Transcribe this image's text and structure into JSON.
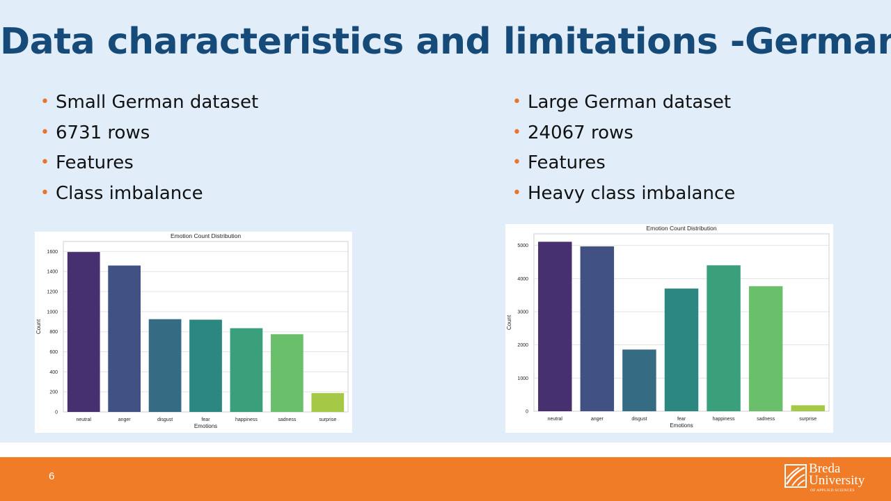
{
  "slide": {
    "title": "Data characteristics and limitations -German",
    "page_number": "6"
  },
  "left_bullets": [
    "Small German dataset",
    "6731 rows",
    "Features",
    "Class imbalance"
  ],
  "right_bullets": [
    "Large German dataset",
    "24067 rows",
    "Features",
    "Heavy class imbalance"
  ],
  "colors": {
    "accent_orange": "#f07c28",
    "title_blue": "#164a78",
    "background": "#e1eef9",
    "bar_palette": [
      "#47306f",
      "#415183",
      "#356b83",
      "#2b8780",
      "#3aa07b",
      "#6abf6b",
      "#a5c946"
    ]
  },
  "logo": {
    "icon": "breda-university-logo-icon",
    "line1": "Breda",
    "line2": "University",
    "line3": "OF APPLIED SCIENCES"
  },
  "chart_data": [
    {
      "type": "bar",
      "title": "Emotion Count Distribution",
      "xlabel": "Emotions",
      "ylabel": "Count",
      "categories": [
        "neutral",
        "anger",
        "disgust",
        "fear",
        "happiness",
        "sadness",
        "surprise"
      ],
      "values": [
        1595,
        1460,
        925,
        920,
        835,
        775,
        188
      ],
      "ylim": [
        0,
        1700
      ],
      "yticks": [
        0,
        200,
        400,
        600,
        800,
        1000,
        1200,
        1400,
        1600
      ],
      "grid": true
    },
    {
      "type": "bar",
      "title": "Emotion Count Distribution",
      "xlabel": "Emotions",
      "ylabel": "Count",
      "categories": [
        "neutral",
        "anger",
        "disgust",
        "fear",
        "happiness",
        "sadness",
        "surprise"
      ],
      "values": [
        5110,
        4970,
        1860,
        3700,
        4400,
        3770,
        180
      ],
      "ylim": [
        0,
        5350
      ],
      "yticks": [
        0,
        1000,
        2000,
        3000,
        4000,
        5000
      ],
      "grid": true
    }
  ]
}
